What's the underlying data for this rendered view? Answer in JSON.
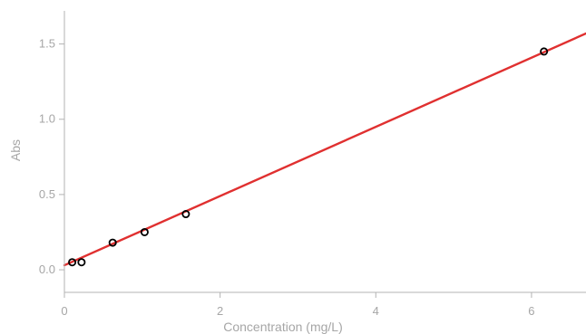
{
  "chart_data": {
    "type": "scatter",
    "xlabel": "Concentration (mg/L)",
    "ylabel": "Abs",
    "xlim": [
      0,
      6.7
    ],
    "ylim": [
      -0.15,
      1.72
    ],
    "xticks": [
      0,
      2,
      4,
      6
    ],
    "yticks": [
      0.0,
      0.5,
      1.0,
      1.5
    ],
    "xtick_labels": [
      "0",
      "2",
      "4",
      "6"
    ],
    "ytick_labels": [
      "0.0",
      "0.5",
      "1.0",
      "1.5"
    ],
    "grid": false,
    "legend": "none",
    "series": [
      {
        "kind": "points",
        "marker": "open-circle",
        "color": "#000000",
        "x": [
          0.1,
          0.22,
          0.62,
          1.03,
          1.56,
          6.16
        ],
        "y": [
          0.05,
          0.05,
          0.18,
          0.25,
          0.37,
          1.45
        ]
      },
      {
        "kind": "line",
        "color": "#e03030",
        "x": [
          0.0,
          6.7
        ],
        "y": [
          0.03,
          1.57
        ]
      }
    ]
  }
}
